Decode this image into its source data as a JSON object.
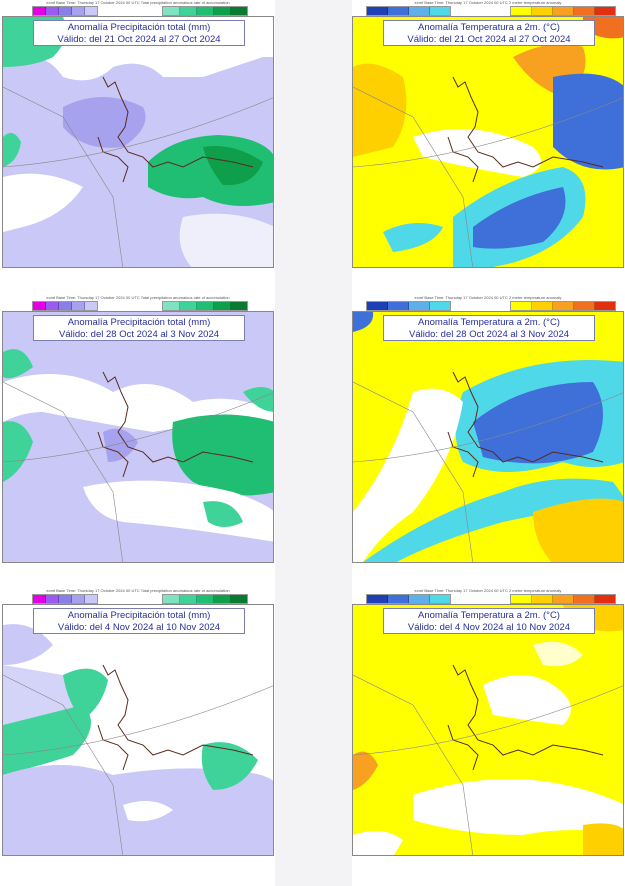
{
  "panels": [
    {
      "id": "p1",
      "type": "precip",
      "base_text": "ecmf Base Time: Thursday 17 October 2024 00 UTC Total precipitation anomalous rate of accumulation",
      "title": "Anomalía Precipitación total (mm)",
      "valid": "Válido: del 21 Oct 2024 al 27 Oct 2024"
    },
    {
      "id": "t1",
      "type": "temp",
      "base_text": "ecmf Base Time: Thursday 17 October 2024 00 UTC 2 metre temperature anomaly",
      "title": "Anomalía Temperatura a 2m. (°C)",
      "valid": "Válido: del 21 Oct 2024 al 27 Oct 2024"
    },
    {
      "id": "p2",
      "type": "precip",
      "base_text": "ecmf Base Time: Thursday 17 October 2024 00 UTC Total precipitation anomalous rate of accumulation",
      "title": "Anomalía Precipitación total (mm)",
      "valid": "Válido: del 28 Oct 2024 al 3 Nov 2024"
    },
    {
      "id": "t2",
      "type": "temp",
      "base_text": "ecmf Base Time: Thursday 17 October 2024 00 UTC 2 metre temperature anomaly",
      "title": "Anomalía Temperatura a 2m. (°C)",
      "valid": "Válido: del 28 Oct 2024 al 3 Nov 2024"
    },
    {
      "id": "p3",
      "type": "precip",
      "base_text": "ecmf Base Time: Thursday 17 October 2024 00 UTC Total precipitation anomalous rate of accumulation",
      "title": "Anomalía Precipitación total (mm)",
      "valid": "Válido: del 4 Nov 2024 al 10 Nov 2024"
    },
    {
      "id": "t3",
      "type": "temp",
      "base_text": "ecmf Base Time: Thursday 17 October 2024 00 UTC 2 metre temperature anomaly",
      "title": "Anomalía Temperatura a 2m. (°C)",
      "valid": "Válido: del 4 Nov 2024 al 10 Nov 2024"
    }
  ],
  "colors": {
    "precip_dry": [
      "#e400e4",
      "#9a5cf0",
      "#8a7fe6",
      "#a6a2ee",
      "#c9c8f6"
    ],
    "precip_wet": [
      "#7fe3c2",
      "#3fd39a",
      "#1fbe72",
      "#0f9e4a",
      "#0a7a30"
    ],
    "temp_cold": [
      "#1f3fb4",
      "#3f6fd8",
      "#5fb0e8",
      "#4fd8e8"
    ],
    "temp_warm": [
      "#ffff00",
      "#ffd000",
      "#f8a020",
      "#f07020",
      "#e03010"
    ],
    "neutral": "#ffffff",
    "coast": "#5a2a1a"
  }
}
